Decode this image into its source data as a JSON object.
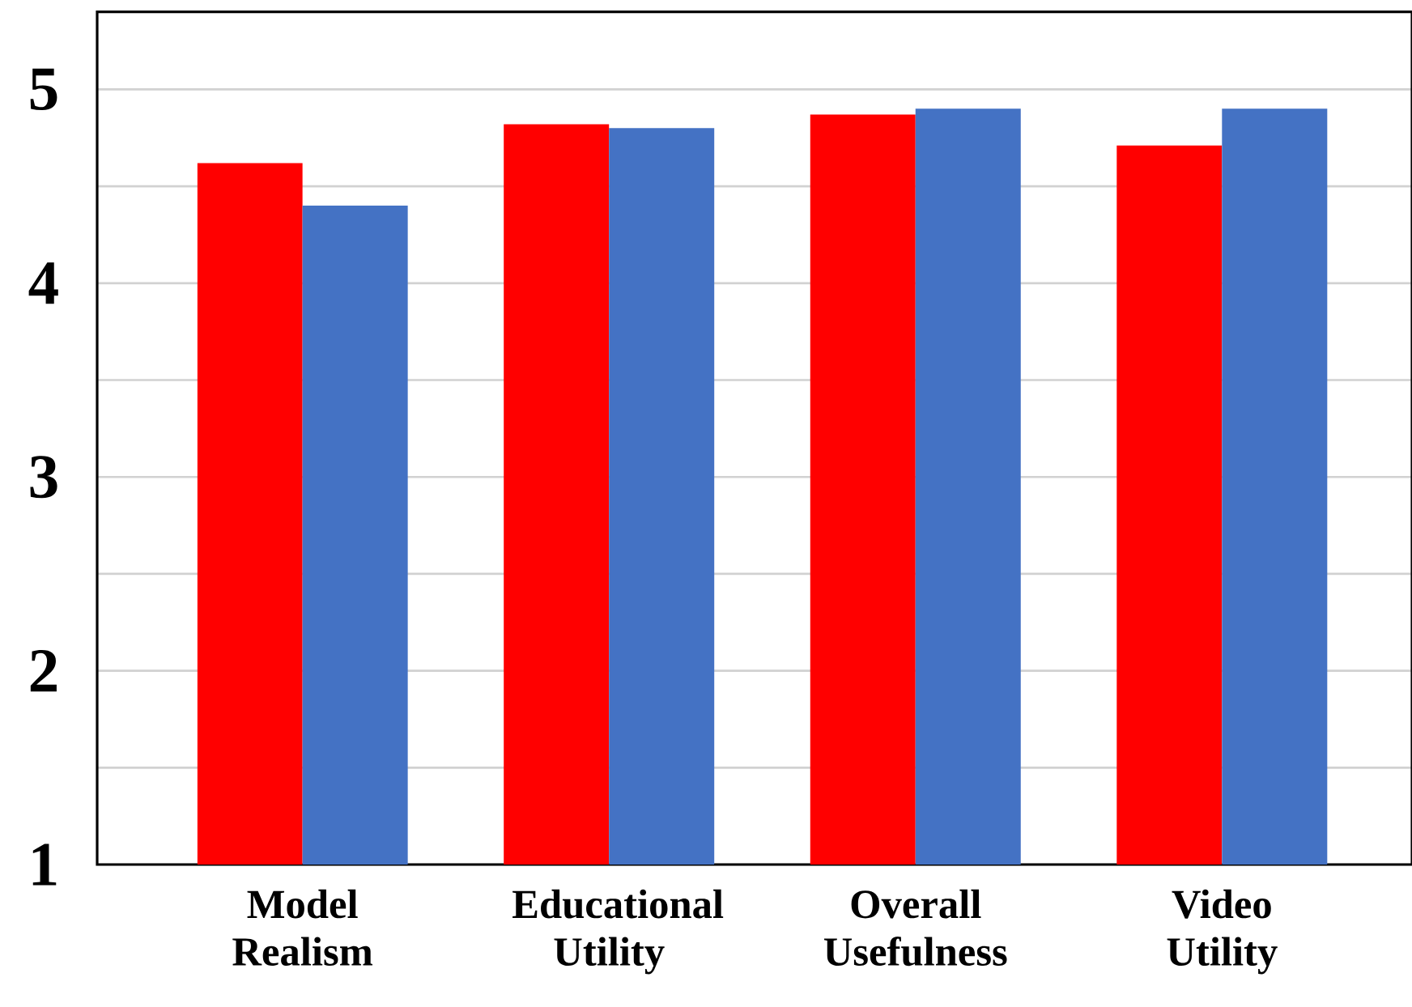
{
  "chart_data": {
    "type": "bar",
    "categories": [
      "Model Realism",
      "Educational Utility",
      "Overall Usefulness",
      "Video Utility"
    ],
    "series": [
      {
        "color": "#ff0000",
        "values": [
          4.62,
          4.82,
          4.87,
          4.71
        ]
      },
      {
        "color": "#4472c4",
        "values": [
          4.4,
          4.8,
          4.9,
          4.9
        ]
      }
    ],
    "ylim": [
      1,
      5.4
    ],
    "yticks": [
      1,
      {
        "value": 1.5,
        "label": null
      },
      2,
      {
        "value": 2.5,
        "label": null
      },
      3,
      {
        "value": 3.5,
        "label": null
      },
      4,
      {
        "value": 4.5,
        "label": null
      },
      5
    ],
    "grid": "y"
  }
}
